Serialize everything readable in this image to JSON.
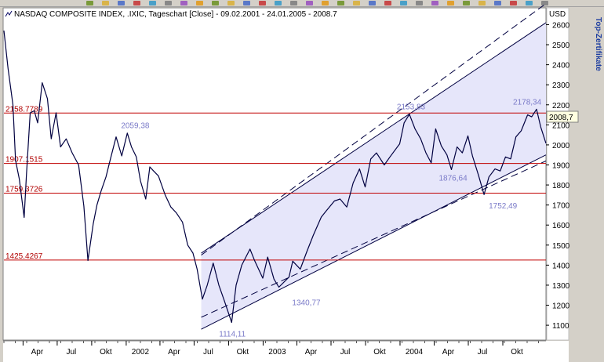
{
  "chart_data": {
    "type": "line",
    "title": "NASDAQ COMPOSITE INDEX, .IXIC, Tageschart [Close] - 09.02.2001 - 24.01.2005 - 2008.7",
    "currency": "USD",
    "current_value_label": "2008,7",
    "side_label": "Top-Zertifikate",
    "ylim": [
      1030,
      2680
    ],
    "y_ticks": [
      "1100",
      "1200",
      "1300",
      "1400",
      "1500",
      "1600",
      "1700",
      "1800",
      "1900",
      "2000",
      "2100",
      "2200",
      "2300",
      "2400",
      "2500",
      "2600"
    ],
    "x_range": [
      "2001-02-09",
      "2005-01-24"
    ],
    "x_ticks": [
      {
        "date": "2001-04-01",
        "label": "Apr"
      },
      {
        "date": "2001-07-01",
        "label": "Jul"
      },
      {
        "date": "2001-10-01",
        "label": "Okt"
      },
      {
        "date": "2002-01-01",
        "label": "2002"
      },
      {
        "date": "2002-04-01",
        "label": "Apr"
      },
      {
        "date": "2002-07-01",
        "label": "Jul"
      },
      {
        "date": "2002-10-01",
        "label": "Okt"
      },
      {
        "date": "2003-01-01",
        "label": "2003"
      },
      {
        "date": "2003-04-01",
        "label": "Apr"
      },
      {
        "date": "2003-07-01",
        "label": "Jul"
      },
      {
        "date": "2003-10-01",
        "label": "Okt"
      },
      {
        "date": "2004-01-01",
        "label": "2004"
      },
      {
        "date": "2004-04-01",
        "label": "Apr"
      },
      {
        "date": "2004-07-01",
        "label": "Jul"
      },
      {
        "date": "2004-10-01",
        "label": "Okt"
      }
    ],
    "horizontal_lines": [
      {
        "value": 2158.7789,
        "label": "2158.7789"
      },
      {
        "value": 1907.1515,
        "label": "1907.1515"
      },
      {
        "value": 1759.3726,
        "label": "1759.3726"
      },
      {
        "value": 1425.4267,
        "label": "1425.4267"
      }
    ],
    "peak_labels": [
      {
        "date": "2002-01-04",
        "value": 2059.38,
        "label": "2059,38"
      },
      {
        "date": "2004-01-26",
        "value": 2153.83,
        "label": "2153,83"
      },
      {
        "date": "2004-12-30",
        "value": 2178.34,
        "label": "2178,34"
      },
      {
        "date": "2004-05-17",
        "value": 1876.64,
        "label": "1876,64"
      },
      {
        "date": "2004-08-12",
        "value": 1752.49,
        "label": "1752,49"
      },
      {
        "date": "2002-10-09",
        "value": 1114.11,
        "label": "1114,11"
      },
      {
        "date": "2003-03-11",
        "value": 1340.77,
        "label": "1340,77"
      }
    ],
    "channel": {
      "start_date": "2002-07-20",
      "end_date": "2005-01-24",
      "upper_solid": [
        1460,
        2610
      ],
      "upper_dashed": [
        1450,
        2705
      ],
      "lower_solid": [
        1080,
        1950
      ],
      "lower_dashed": [
        1140,
        1920
      ],
      "fill_color": "#e6e6fa"
    },
    "series": [
      {
        "color": "#000040",
        "points": [
          [
            "2001-02-09",
            2570
          ],
          [
            "2001-02-20",
            2380
          ],
          [
            "2001-03-05",
            2200
          ],
          [
            "2001-03-12",
            1923
          ],
          [
            "2001-03-22",
            1830
          ],
          [
            "2001-04-04",
            1638
          ],
          [
            "2001-04-10",
            1850
          ],
          [
            "2001-04-20",
            2160
          ],
          [
            "2001-05-01",
            2170
          ],
          [
            "2001-05-10",
            2110
          ],
          [
            "2001-05-22",
            2310
          ],
          [
            "2001-06-05",
            2230
          ],
          [
            "2001-06-15",
            2030
          ],
          [
            "2001-06-28",
            2160
          ],
          [
            "2001-07-10",
            1990
          ],
          [
            "2001-07-25",
            2030
          ],
          [
            "2001-08-10",
            1960
          ],
          [
            "2001-08-27",
            1900
          ],
          [
            "2001-09-10",
            1695
          ],
          [
            "2001-09-21",
            1423
          ],
          [
            "2001-10-05",
            1605
          ],
          [
            "2001-10-15",
            1700
          ],
          [
            "2001-10-26",
            1770
          ],
          [
            "2001-11-08",
            1840
          ],
          [
            "2001-11-20",
            1930
          ],
          [
            "2001-12-05",
            2040
          ],
          [
            "2001-12-20",
            1945
          ],
          [
            "2002-01-04",
            2059
          ],
          [
            "2002-01-15",
            1990
          ],
          [
            "2002-01-28",
            1940
          ],
          [
            "2002-02-08",
            1820
          ],
          [
            "2002-02-22",
            1730
          ],
          [
            "2002-03-05",
            1890
          ],
          [
            "2002-03-15",
            1870
          ],
          [
            "2002-03-28",
            1845
          ],
          [
            "2002-04-15",
            1750
          ],
          [
            "2002-04-30",
            1690
          ],
          [
            "2002-05-15",
            1660
          ],
          [
            "2002-05-31",
            1615
          ],
          [
            "2002-06-14",
            1500
          ],
          [
            "2002-06-28",
            1460
          ],
          [
            "2002-07-09",
            1380
          ],
          [
            "2002-07-23",
            1230
          ],
          [
            "2002-08-05",
            1300
          ],
          [
            "2002-08-21",
            1410
          ],
          [
            "2002-09-05",
            1300
          ],
          [
            "2002-09-20",
            1220
          ],
          [
            "2002-10-09",
            1114
          ],
          [
            "2002-10-21",
            1300
          ],
          [
            "2002-11-05",
            1400
          ],
          [
            "2002-11-27",
            1480
          ],
          [
            "2002-12-10",
            1420
          ],
          [
            "2002-12-31",
            1335
          ],
          [
            "2003-01-13",
            1440
          ],
          [
            "2003-01-30",
            1330
          ],
          [
            "2003-02-12",
            1290
          ],
          [
            "2003-03-11",
            1340
          ],
          [
            "2003-03-21",
            1420
          ],
          [
            "2003-04-10",
            1380
          ],
          [
            "2003-04-28",
            1470
          ],
          [
            "2003-05-15",
            1550
          ],
          [
            "2003-06-05",
            1640
          ],
          [
            "2003-06-18",
            1670
          ],
          [
            "2003-07-10",
            1720
          ],
          [
            "2003-07-25",
            1730
          ],
          [
            "2003-08-12",
            1690
          ],
          [
            "2003-08-29",
            1810
          ],
          [
            "2003-09-15",
            1880
          ],
          [
            "2003-09-30",
            1790
          ],
          [
            "2003-10-15",
            1930
          ],
          [
            "2003-10-30",
            1960
          ],
          [
            "2003-11-20",
            1900
          ],
          [
            "2003-12-05",
            1940
          ],
          [
            "2003-12-31",
            2005
          ],
          [
            "2004-01-12",
            2110
          ],
          [
            "2004-01-26",
            2153
          ],
          [
            "2004-02-10",
            2080
          ],
          [
            "2004-02-25",
            2030
          ],
          [
            "2004-03-10",
            1960
          ],
          [
            "2004-03-24",
            1910
          ],
          [
            "2004-04-05",
            2080
          ],
          [
            "2004-04-20",
            1995
          ],
          [
            "2004-05-05",
            1950
          ],
          [
            "2004-05-17",
            1877
          ],
          [
            "2004-06-01",
            1990
          ],
          [
            "2004-06-15",
            1960
          ],
          [
            "2004-06-30",
            2045
          ],
          [
            "2004-07-12",
            1945
          ],
          [
            "2004-07-28",
            1850
          ],
          [
            "2004-08-12",
            1752
          ],
          [
            "2004-08-25",
            1840
          ],
          [
            "2004-09-10",
            1880
          ],
          [
            "2004-09-24",
            1870
          ],
          [
            "2004-10-08",
            1940
          ],
          [
            "2004-10-22",
            1930
          ],
          [
            "2004-11-05",
            2040
          ],
          [
            "2004-11-19",
            2070
          ],
          [
            "2004-12-06",
            2150
          ],
          [
            "2004-12-17",
            2140
          ],
          [
            "2004-12-30",
            2178
          ],
          [
            "2005-01-10",
            2090
          ],
          [
            "2005-01-24",
            2008
          ]
        ]
      }
    ]
  }
}
